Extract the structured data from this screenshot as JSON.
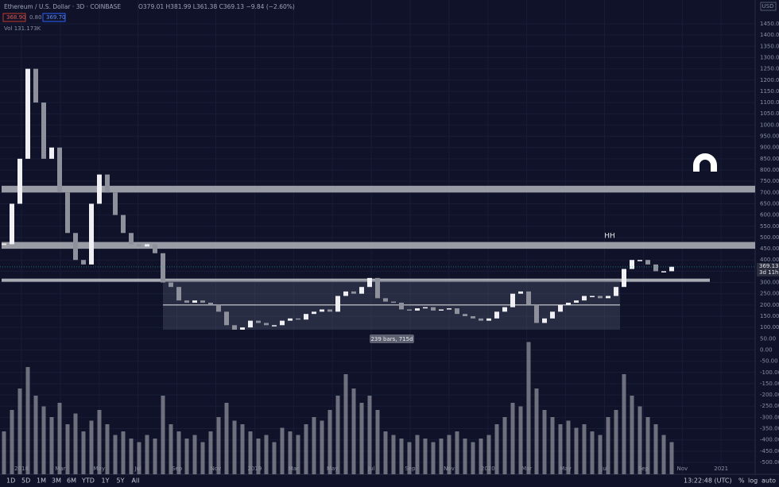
{
  "header": {
    "symbol": "Ethereum / U.S. Dollar · 3D · COINBASE",
    "ohlc": "O379.01 H381.99 L361.38 C369.13 −9.84 (−2.60%)",
    "bid": "368.90",
    "spread": "0.80",
    "ask": "369.70",
    "volume": "Vol 131.173K",
    "currency": "USD"
  },
  "chart_data": {
    "type": "candlestick",
    "values": [
      470,
      650,
      850,
      1250,
      1100,
      850,
      900,
      700,
      520,
      400,
      380,
      650,
      780,
      700,
      600,
      520,
      470,
      460,
      470,
      430,
      300,
      280,
      220,
      210,
      220,
      210,
      200,
      170,
      110,
      90,
      100,
      130,
      120,
      110,
      110,
      130,
      140,
      135,
      160,
      170,
      180,
      170,
      240,
      260,
      250,
      280,
      320,
      230,
      215,
      210,
      180,
      175,
      185,
      190,
      175,
      180,
      185,
      160,
      150,
      140,
      130,
      140,
      170,
      190,
      250,
      260,
      200,
      120,
      140,
      170,
      200,
      210,
      220,
      240,
      240,
      230,
      240,
      280,
      360,
      400,
      400,
      380,
      350,
      350,
      370
    ],
    "volume": [
      60,
      90,
      120,
      150,
      110,
      95,
      80,
      100,
      70,
      85,
      60,
      75,
      90,
      70,
      55,
      60,
      50,
      45,
      55,
      50,
      110,
      70,
      60,
      50,
      55,
      45,
      60,
      80,
      100,
      75,
      70,
      60,
      50,
      55,
      45,
      65,
      60,
      55,
      70,
      80,
      75,
      90,
      110,
      140,
      120,
      100,
      110,
      90,
      60,
      55,
      50,
      45,
      55,
      50,
      45,
      50,
      55,
      60,
      50,
      45,
      50,
      55,
      70,
      80,
      100,
      95,
      185,
      120,
      90,
      80,
      70,
      75,
      65,
      70,
      60,
      55,
      80,
      90,
      140,
      110,
      95,
      80,
      70,
      55,
      45
    ],
    "ylim": [
      -500,
      1450
    ],
    "yticks": [
      {
        "value": 1450,
        "label": "1450.00"
      },
      {
        "value": 1400,
        "label": "1400.00"
      },
      {
        "value": 1350,
        "label": "1350.00"
      },
      {
        "value": 1300,
        "label": "1300.00"
      },
      {
        "value": 1250,
        "label": "1250.00"
      },
      {
        "value": 1200,
        "label": "1200.00"
      },
      {
        "value": 1150,
        "label": "1150.00"
      },
      {
        "value": 1100,
        "label": "1100.00"
      },
      {
        "value": 1050,
        "label": "1050.00"
      },
      {
        "value": 1000,
        "label": "1000.00"
      },
      {
        "value": 950,
        "label": "950.00"
      },
      {
        "value": 900,
        "label": "900.00"
      },
      {
        "value": 850,
        "label": "850.00"
      },
      {
        "value": 800,
        "label": "800.00"
      },
      {
        "value": 750,
        "label": "750.00"
      },
      {
        "value": 700,
        "label": "700.00"
      },
      {
        "value": 650,
        "label": "650.00"
      },
      {
        "value": 600,
        "label": "600.00"
      },
      {
        "value": 550,
        "label": "550.00"
      },
      {
        "value": 500,
        "label": "500.00"
      },
      {
        "value": 450,
        "label": "450.00"
      },
      {
        "value": 400,
        "label": "400.00"
      },
      {
        "value": 350,
        "label": "350.00"
      },
      {
        "value": 300,
        "label": "300.00"
      },
      {
        "value": 250,
        "label": "250.00"
      },
      {
        "value": 200,
        "label": "200.00"
      },
      {
        "value": 150,
        "label": "150.00"
      },
      {
        "value": 100,
        "label": "100.00"
      },
      {
        "value": 50,
        "label": "50.00"
      },
      {
        "value": 0,
        "label": "0.00"
      },
      {
        "value": -50,
        "label": "-50.00"
      },
      {
        "value": -100,
        "label": "-100.00"
      },
      {
        "value": -150,
        "label": "-150.00"
      },
      {
        "value": -200,
        "label": "-200.00"
      },
      {
        "value": -250,
        "label": "-250.00"
      },
      {
        "value": -300,
        "label": "-300.00"
      },
      {
        "value": -350,
        "label": "-350.00"
      },
      {
        "value": -400,
        "label": "-400.00"
      },
      {
        "value": -450,
        "label": "-450.00"
      },
      {
        "value": -500,
        "label": "-500.00"
      }
    ],
    "xticks": [
      {
        "value": 0,
        "label": "2018"
      },
      {
        "value": 2,
        "label": "Mar"
      },
      {
        "value": 4,
        "label": "May"
      },
      {
        "value": 6,
        "label": "Jul"
      },
      {
        "value": 8,
        "label": "Sep"
      },
      {
        "value": 10,
        "label": "Nov"
      },
      {
        "value": 12,
        "label": "2019"
      },
      {
        "value": 14,
        "label": "Mar"
      },
      {
        "value": 16,
        "label": "May"
      },
      {
        "value": 18,
        "label": "Jul"
      },
      {
        "value": 20,
        "label": "Sep"
      },
      {
        "value": 22,
        "label": "Nov"
      },
      {
        "value": 24,
        "label": "2020"
      },
      {
        "value": 26,
        "label": "Mar"
      },
      {
        "value": 28,
        "label": "May"
      },
      {
        "value": 30,
        "label": "Jul"
      },
      {
        "value": 32,
        "label": "Sep"
      },
      {
        "value": 34,
        "label": "Nov"
      },
      {
        "value": 36,
        "label": "2021"
      }
    ],
    "zones": [
      {
        "low": 700,
        "high": 730
      },
      {
        "low": 450,
        "high": 480
      }
    ],
    "support": 310,
    "range": {
      "low": 90,
      "high": 310,
      "label": "239 bars, 715d"
    },
    "annotation": "HH",
    "last_price": {
      "value": 369.13,
      "label": "369.13",
      "countdown": "3d 11h"
    }
  },
  "toolbar": {
    "ranges": [
      "1D",
      "5D",
      "1M",
      "3M",
      "6M",
      "YTD",
      "1Y",
      "5Y",
      "All"
    ],
    "clock": "13:22:48 (UTC)",
    "percent": "%",
    "log": "log",
    "auto": "auto"
  }
}
